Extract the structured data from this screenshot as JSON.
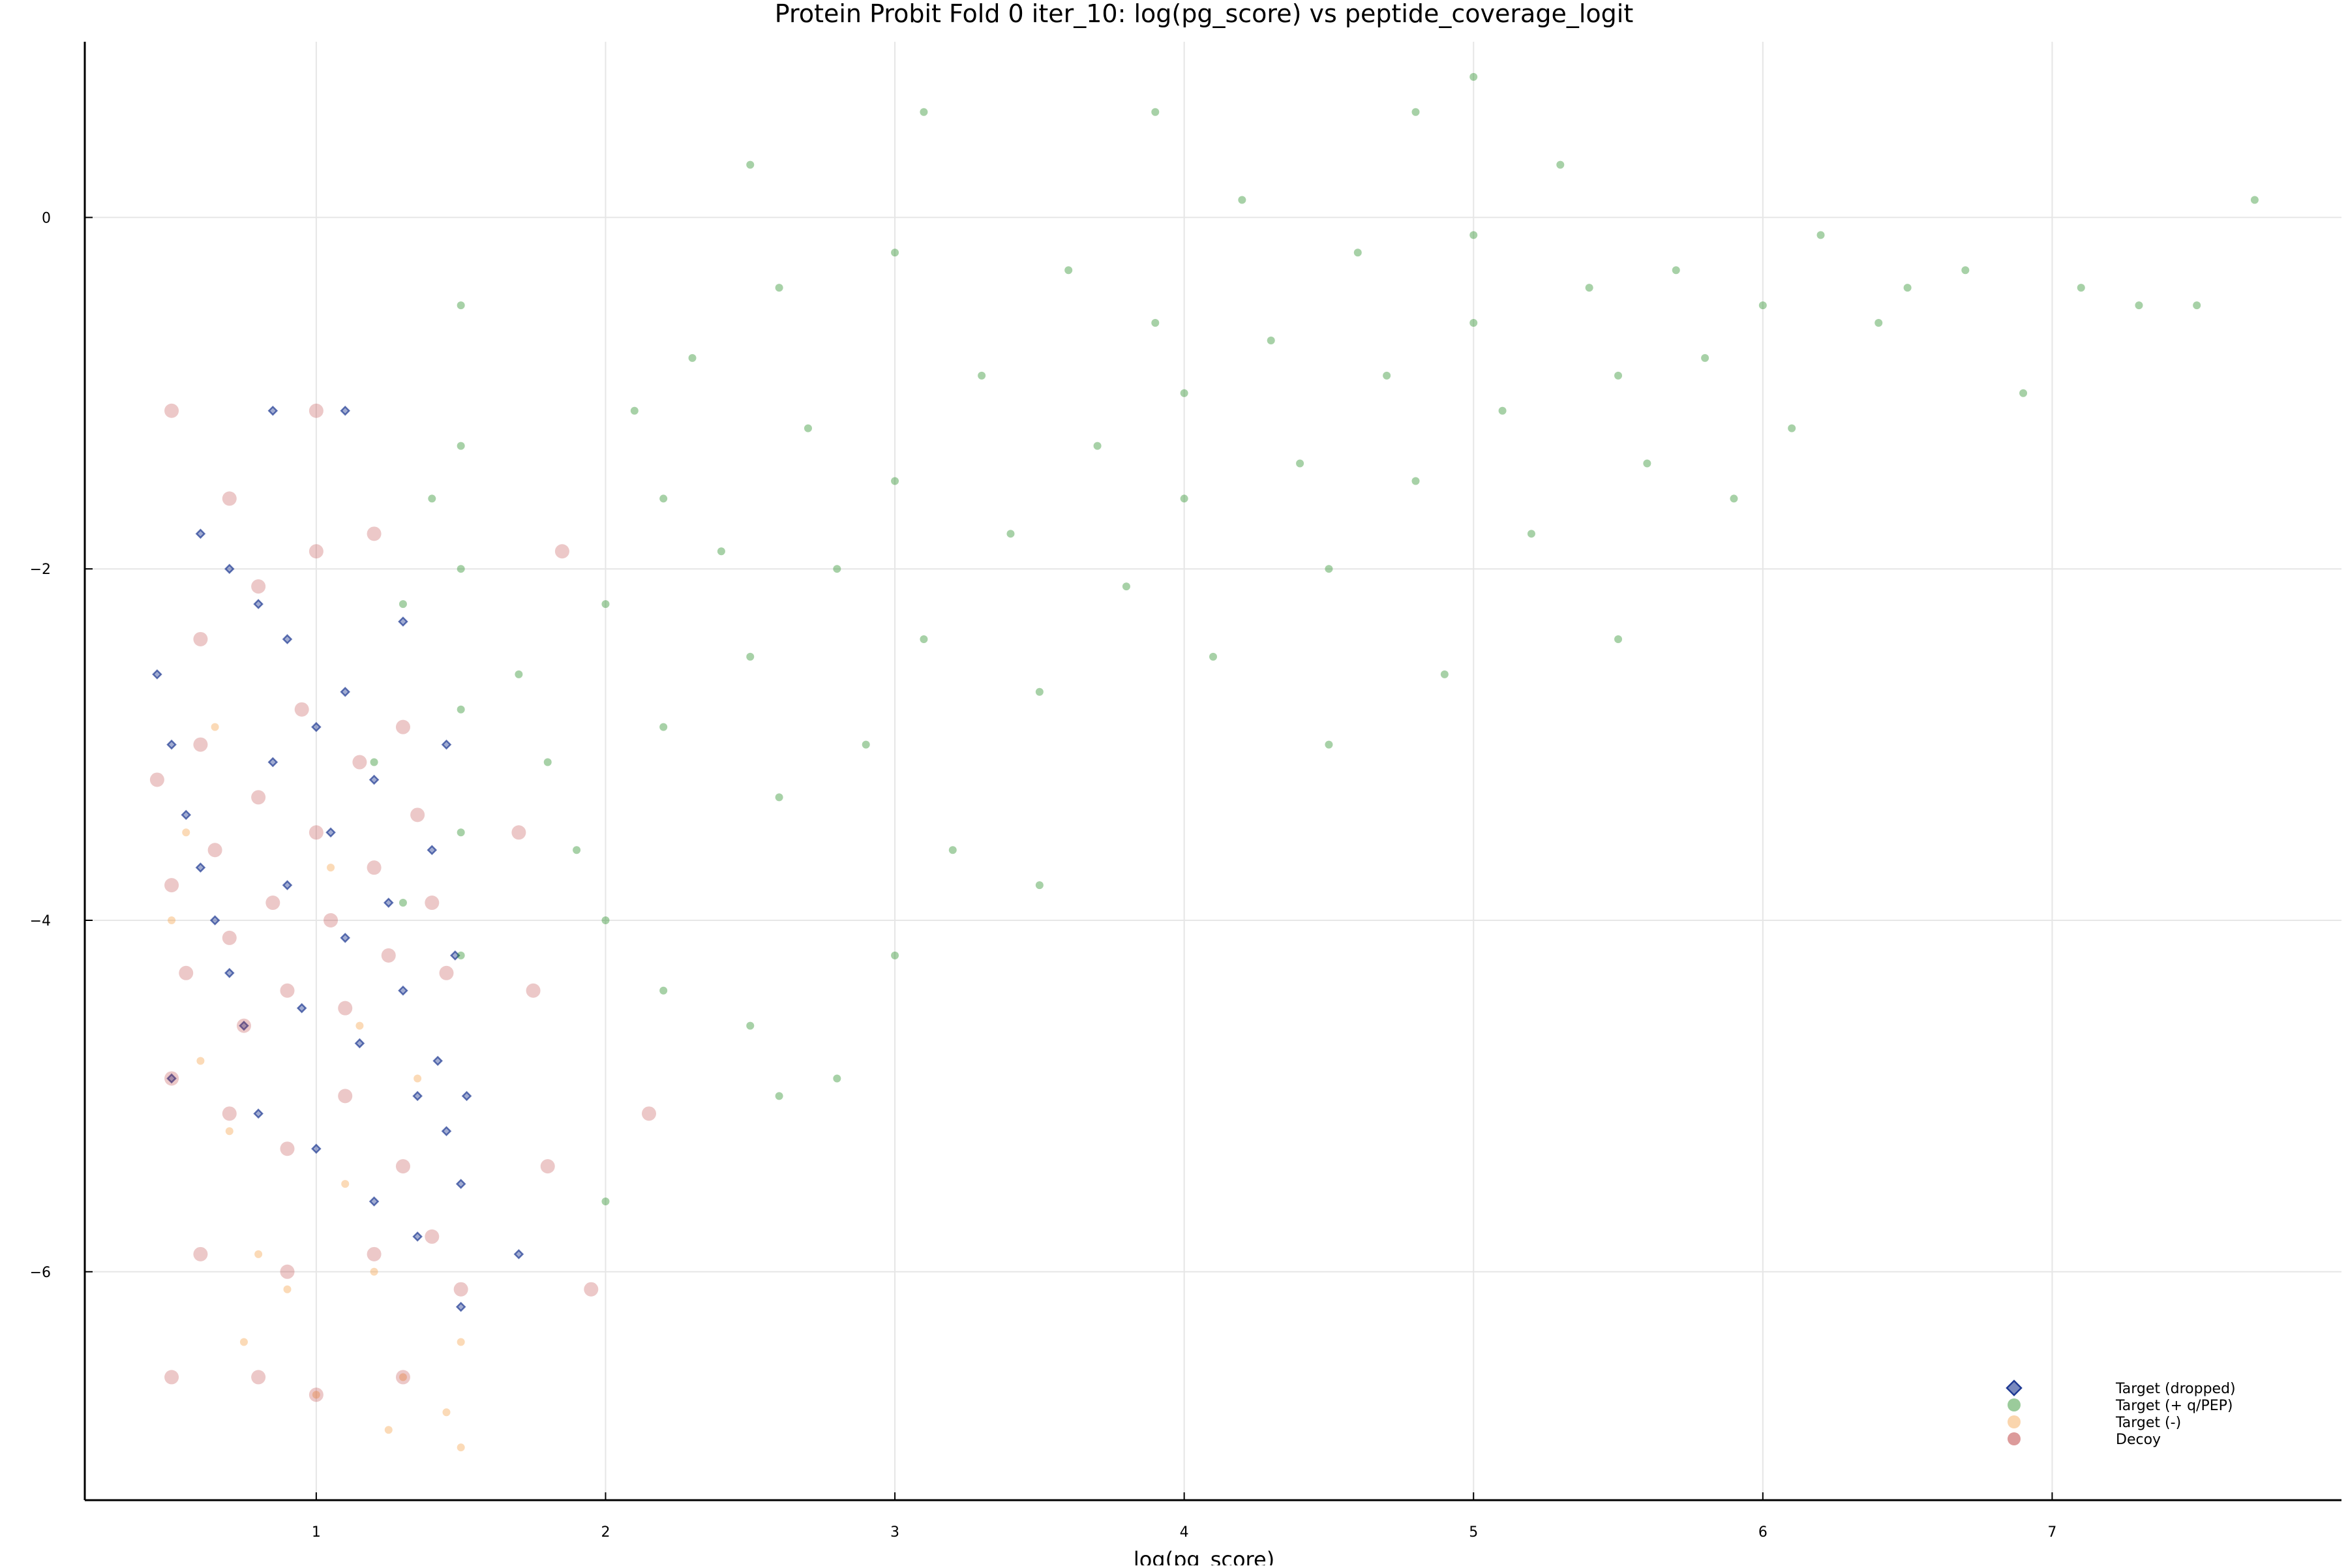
{
  "chart_data": {
    "type": "scatter",
    "title": "Protein Probit Fold 0 iter_10: log(pg_score) vs peptide_coverage_logit",
    "xlabel": "log(pg_score)",
    "ylabel": "",
    "xlim": [
      0.2,
      8.0
    ],
    "ylim": [
      -7.3,
      1.0
    ],
    "x_ticks": [
      1,
      2,
      3,
      4,
      5,
      6,
      7
    ],
    "y_ticks": [
      0,
      -2,
      -4,
      -6
    ],
    "x_tick_labels": [
      "1",
      "2",
      "3",
      "4",
      "5",
      "6",
      "7"
    ],
    "y_tick_labels": [
      "0",
      "−2",
      "−4",
      "−6"
    ],
    "grid": true,
    "legend_position": "bottom-right",
    "series": [
      {
        "name": "Target (dropped)",
        "marker": "diamond",
        "color": "#1f3a93",
        "points": [
          [
            0.45,
            -2.6
          ],
          [
            0.5,
            -3.0
          ],
          [
            0.55,
            -3.4
          ],
          [
            0.6,
            -3.7
          ],
          [
            0.65,
            -4.0
          ],
          [
            0.7,
            -4.3
          ],
          [
            0.75,
            -4.6
          ],
          [
            0.8,
            -2.2
          ],
          [
            0.85,
            -3.1
          ],
          [
            0.9,
            -3.8
          ],
          [
            0.95,
            -4.5
          ],
          [
            1.0,
            -2.9
          ],
          [
            1.05,
            -3.5
          ],
          [
            1.1,
            -4.1
          ],
          [
            1.15,
            -4.7
          ],
          [
            1.2,
            -3.2
          ],
          [
            1.25,
            -3.9
          ],
          [
            1.3,
            -4.4
          ],
          [
            1.35,
            -5.0
          ],
          [
            1.4,
            -3.6
          ],
          [
            1.42,
            -4.8
          ],
          [
            1.45,
            -5.2
          ],
          [
            1.48,
            -4.2
          ],
          [
            1.5,
            -5.5
          ],
          [
            0.6,
            -1.8
          ],
          [
            0.7,
            -2.0
          ],
          [
            0.9,
            -2.4
          ],
          [
            1.1,
            -2.7
          ],
          [
            1.3,
            -2.3
          ],
          [
            1.45,
            -3.0
          ],
          [
            0.5,
            -4.9
          ],
          [
            0.8,
            -5.1
          ],
          [
            1.0,
            -5.3
          ],
          [
            1.2,
            -5.6
          ],
          [
            1.35,
            -5.8
          ],
          [
            1.5,
            -6.2
          ],
          [
            1.7,
            -5.9
          ],
          [
            1.52,
            -5.0
          ],
          [
            1.1,
            -1.1
          ],
          [
            0.85,
            -1.1
          ]
        ]
      },
      {
        "name": "Target (+ q/PEP)",
        "marker": "circle",
        "color": "#228b22",
        "points": [
          [
            1.5,
            -0.5
          ],
          [
            1.5,
            -1.3
          ],
          [
            1.5,
            -2.0
          ],
          [
            1.5,
            -2.8
          ],
          [
            1.5,
            -3.5
          ],
          [
            1.5,
            -4.2
          ],
          [
            1.4,
            -1.6
          ],
          [
            1.3,
            -2.2
          ],
          [
            1.7,
            -2.6
          ],
          [
            1.8,
            -3.1
          ],
          [
            1.9,
            -3.6
          ],
          [
            2.0,
            -2.2
          ],
          [
            2.0,
            -4.0
          ],
          [
            2.1,
            -1.1
          ],
          [
            2.2,
            -1.6
          ],
          [
            2.2,
            -2.9
          ],
          [
            2.2,
            -4.4
          ],
          [
            2.3,
            -0.8
          ],
          [
            2.4,
            -1.9
          ],
          [
            2.5,
            -2.5
          ],
          [
            2.6,
            -3.3
          ],
          [
            2.6,
            -0.4
          ],
          [
            2.7,
            -1.2
          ],
          [
            2.8,
            -2.0
          ],
          [
            2.9,
            -3.0
          ],
          [
            3.0,
            -0.2
          ],
          [
            3.0,
            -1.5
          ],
          [
            3.1,
            -2.4
          ],
          [
            3.1,
            0.6
          ],
          [
            3.2,
            -3.6
          ],
          [
            3.3,
            -0.9
          ],
          [
            3.4,
            -1.8
          ],
          [
            3.5,
            -2.7
          ],
          [
            3.6,
            -0.3
          ],
          [
            3.7,
            -1.3
          ],
          [
            3.8,
            -2.1
          ],
          [
            3.9,
            -0.6
          ],
          [
            4.0,
            -1.0
          ],
          [
            4.0,
            -1.6
          ],
          [
            4.1,
            -2.5
          ],
          [
            4.2,
            0.1
          ],
          [
            4.3,
            -0.7
          ],
          [
            4.4,
            -1.4
          ],
          [
            4.5,
            -2.0
          ],
          [
            4.6,
            -0.2
          ],
          [
            4.7,
            -0.9
          ],
          [
            4.8,
            -1.5
          ],
          [
            4.9,
            -2.6
          ],
          [
            5.0,
            -0.1
          ],
          [
            5.0,
            -0.6
          ],
          [
            5.1,
            -1.1
          ],
          [
            5.2,
            -1.8
          ],
          [
            5.3,
            0.3
          ],
          [
            5.4,
            -0.4
          ],
          [
            5.5,
            -0.9
          ],
          [
            5.6,
            -1.4
          ],
          [
            5.7,
            -0.3
          ],
          [
            5.8,
            -0.8
          ],
          [
            5.9,
            -1.6
          ],
          [
            6.0,
            -0.5
          ],
          [
            6.1,
            -1.2
          ],
          [
            6.2,
            -0.1
          ],
          [
            6.4,
            -0.6
          ],
          [
            6.5,
            -0.4
          ],
          [
            6.7,
            -0.3
          ],
          [
            6.9,
            -1.0
          ],
          [
            7.1,
            -0.4
          ],
          [
            7.3,
            -0.5
          ],
          [
            7.5,
            -0.5
          ],
          [
            7.7,
            0.1
          ],
          [
            1.2,
            -3.1
          ],
          [
            1.3,
            -3.9
          ],
          [
            2.5,
            -4.6
          ],
          [
            3.0,
            -4.2
          ],
          [
            3.5,
            -3.8
          ],
          [
            2.8,
            -4.9
          ],
          [
            2.0,
            -5.6
          ],
          [
            2.6,
            -5.0
          ],
          [
            4.5,
            -3.0
          ],
          [
            5.5,
            -2.4
          ],
          [
            4.8,
            0.6
          ],
          [
            3.9,
            0.6
          ],
          [
            5.0,
            0.8
          ],
          [
            2.5,
            0.3
          ]
        ]
      },
      {
        "name": "Target (-)",
        "marker": "circle",
        "color": "#f4a24a",
        "points": [
          [
            0.5,
            -4.0
          ],
          [
            0.6,
            -4.8
          ],
          [
            0.7,
            -5.2
          ],
          [
            0.8,
            -5.9
          ],
          [
            0.9,
            -6.1
          ],
          [
            1.0,
            -6.7
          ],
          [
            1.1,
            -5.5
          ],
          [
            1.2,
            -6.0
          ],
          [
            1.3,
            -6.6
          ],
          [
            1.45,
            -6.8
          ],
          [
            1.5,
            -6.4
          ],
          [
            0.55,
            -3.5
          ],
          [
            0.65,
            -2.9
          ],
          [
            1.05,
            -3.7
          ],
          [
            1.15,
            -4.6
          ],
          [
            1.35,
            -4.9
          ],
          [
            1.5,
            -7.0
          ],
          [
            1.25,
            -6.9
          ],
          [
            0.75,
            -6.4
          ]
        ]
      },
      {
        "name": "Decoy",
        "marker": "circle",
        "color": "#b22222",
        "points": [
          [
            0.45,
            -3.2
          ],
          [
            0.5,
            -3.8
          ],
          [
            0.55,
            -4.3
          ],
          [
            0.6,
            -3.0
          ],
          [
            0.65,
            -3.6
          ],
          [
            0.7,
            -4.1
          ],
          [
            0.75,
            -4.6
          ],
          [
            0.8,
            -3.3
          ],
          [
            0.85,
            -3.9
          ],
          [
            0.9,
            -4.4
          ],
          [
            0.95,
            -2.8
          ],
          [
            1.0,
            -3.5
          ],
          [
            1.05,
            -4.0
          ],
          [
            1.1,
            -4.5
          ],
          [
            1.15,
            -3.1
          ],
          [
            1.2,
            -3.7
          ],
          [
            1.25,
            -4.2
          ],
          [
            1.3,
            -2.9
          ],
          [
            1.35,
            -3.4
          ],
          [
            1.4,
            -3.9
          ],
          [
            1.45,
            -4.3
          ],
          [
            0.5,
            -4.9
          ],
          [
            0.7,
            -5.1
          ],
          [
            0.9,
            -5.3
          ],
          [
            1.1,
            -5.0
          ],
          [
            1.3,
            -5.4
          ],
          [
            0.6,
            -2.4
          ],
          [
            0.8,
            -2.1
          ],
          [
            1.0,
            -1.9
          ],
          [
            1.2,
            -1.8
          ],
          [
            0.7,
            -1.6
          ],
          [
            0.5,
            -1.1
          ],
          [
            1.0,
            -1.1
          ],
          [
            0.6,
            -5.9
          ],
          [
            0.9,
            -6.0
          ],
          [
            1.2,
            -5.9
          ],
          [
            1.4,
            -5.8
          ],
          [
            1.5,
            -6.1
          ],
          [
            0.5,
            -6.6
          ],
          [
            0.8,
            -6.6
          ],
          [
            1.0,
            -6.7
          ],
          [
            1.3,
            -6.6
          ],
          [
            1.75,
            -4.4
          ],
          [
            1.8,
            -5.4
          ],
          [
            1.95,
            -6.1
          ],
          [
            2.15,
            -5.1
          ],
          [
            1.85,
            -1.9
          ],
          [
            1.7,
            -3.5
          ]
        ]
      }
    ]
  }
}
